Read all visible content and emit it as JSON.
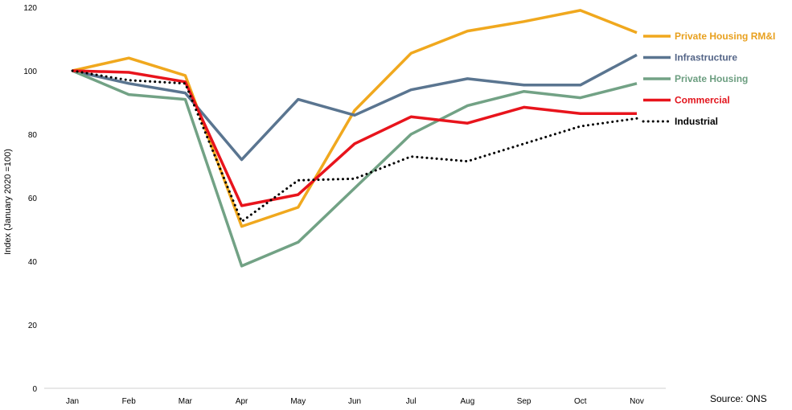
{
  "chart_data": {
    "type": "line",
    "title": "",
    "xlabel": "",
    "ylabel": "Index (January 2020 =100)",
    "categories": [
      "Jan",
      "Feb",
      "Mar",
      "Apr",
      "May",
      "Jun",
      "Jul",
      "Aug",
      "Sep",
      "Oct",
      "Nov"
    ],
    "ylim": [
      0,
      120
    ],
    "yticks": [
      0,
      20,
      40,
      60,
      80,
      100,
      120
    ],
    "grid": false,
    "legend_placement": "right",
    "series": [
      {
        "name": "Private Housing RM&I",
        "color": "#F0A81E",
        "style": "solid",
        "label_color": "#E8A01E",
        "values": [
          100,
          104,
          98.5,
          51,
          57,
          87.5,
          105.5,
          112.5,
          115.5,
          119,
          112
        ]
      },
      {
        "name": "Infrastructure",
        "color": "#5A7590",
        "style": "solid",
        "label_color": "#556688",
        "values": [
          100,
          96,
          93,
          72,
          91,
          86,
          94,
          97.5,
          95.5,
          95.5,
          105
        ]
      },
      {
        "name": "Private Housing",
        "color": "#72A285",
        "style": "solid",
        "label_color": "#6C9E80",
        "values": [
          100,
          92.5,
          91,
          38.5,
          46,
          63,
          80,
          89,
          93.5,
          91.5,
          96
        ]
      },
      {
        "name": "Commercial",
        "color": "#E8141C",
        "style": "solid",
        "label_color": "#E2141C",
        "values": [
          100,
          99.5,
          96.5,
          57.5,
          61,
          77,
          85.5,
          83.5,
          88.5,
          86.5,
          86.5
        ]
      },
      {
        "name": "Industrial",
        "color": "#000000",
        "style": "dotted",
        "label_color": "#000000",
        "values": [
          100,
          97,
          96,
          52.5,
          65.5,
          66,
          73,
          71.5,
          77,
          82.5,
          85
        ]
      }
    ],
    "source": "Source: ONS"
  }
}
